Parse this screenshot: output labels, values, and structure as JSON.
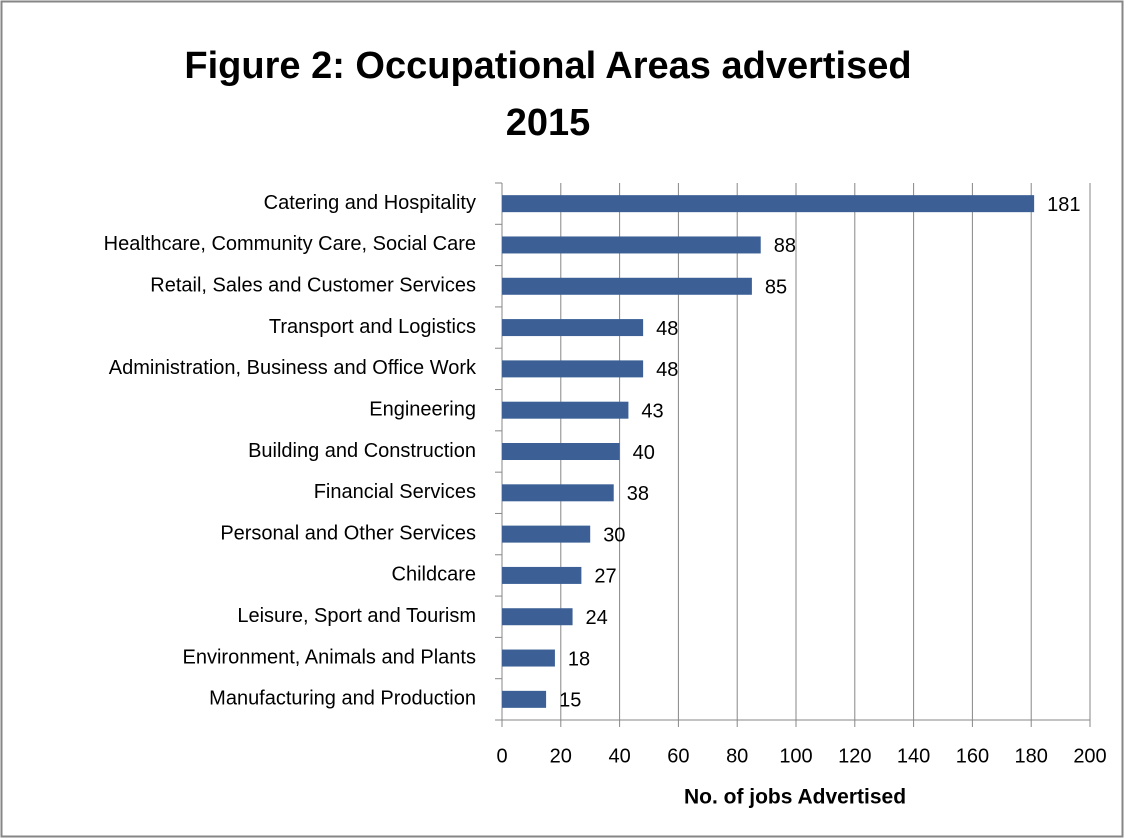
{
  "chart_data": {
    "type": "bar",
    "orientation": "horizontal",
    "title": [
      "Figure 2: Occupational Areas advertised",
      "2015"
    ],
    "xlabel": "No. of jobs Advertised",
    "categories": [
      "Catering and Hospitality",
      "Healthcare, Community Care, Social Care",
      "Retail, Sales and Customer Services",
      "Transport and Logistics",
      "Administration, Business and Office Work",
      "Engineering",
      "Building and Construction",
      "Financial Services",
      "Personal and Other Services",
      "Childcare",
      "Leisure, Sport and Tourism",
      "Environment, Animals and Plants",
      "Manufacturing and Production"
    ],
    "values": [
      181,
      88,
      85,
      48,
      48,
      43,
      40,
      38,
      30,
      27,
      24,
      18,
      15
    ],
    "color": "#3c6096",
    "xlim": [
      0,
      200
    ],
    "xticks": [
      0,
      20,
      40,
      60,
      80,
      100,
      120,
      140,
      160,
      180,
      200
    ],
    "grid": true
  }
}
